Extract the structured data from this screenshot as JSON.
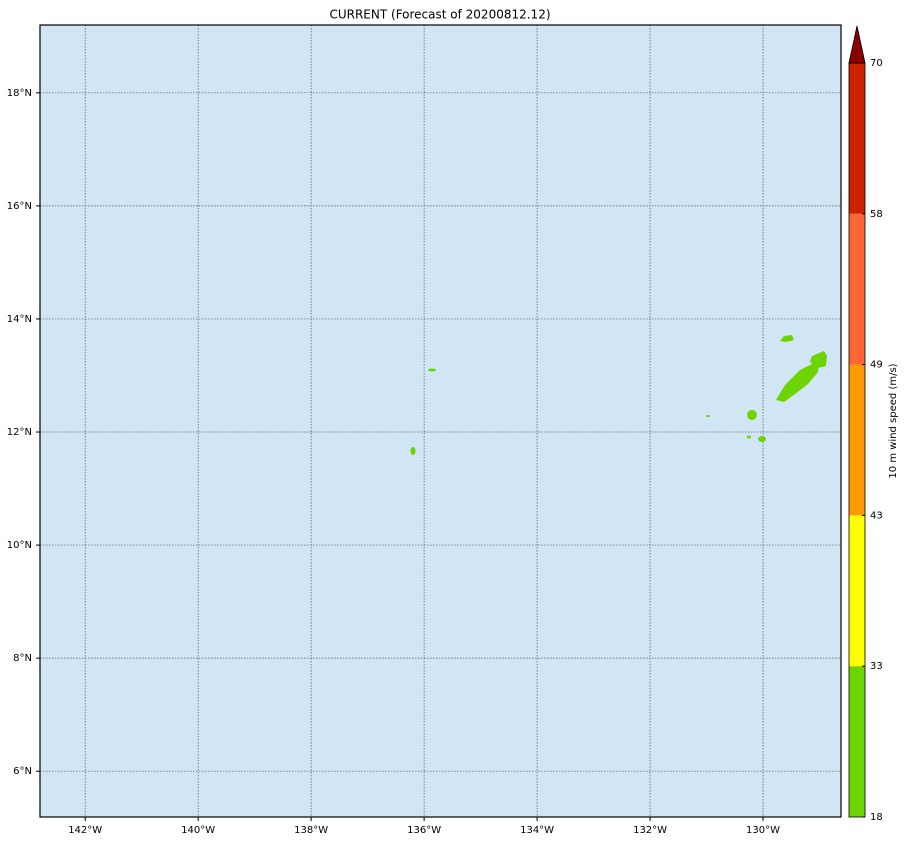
{
  "map": {
    "title": "CURRENT (Forecast of 20200812.12)",
    "lonlim": [
      -142.8,
      -128.62
    ],
    "latlim": [
      5.19,
      19.2
    ],
    "lon_ticks": [
      {
        "value": -142,
        "label": "142°W"
      },
      {
        "value": -140,
        "label": "140°W"
      },
      {
        "value": -138,
        "label": "138°W"
      },
      {
        "value": -136,
        "label": "136°W"
      },
      {
        "value": -134,
        "label": "134°W"
      },
      {
        "value": -132,
        "label": "132°W"
      },
      {
        "value": -130,
        "label": "130°W"
      }
    ],
    "lat_ticks": [
      {
        "value": 6,
        "label": "6°N"
      },
      {
        "value": 8,
        "label": "8°N"
      },
      {
        "value": 10,
        "label": "10°N"
      },
      {
        "value": 12,
        "label": "12°N"
      },
      {
        "value": 14,
        "label": "14°N"
      },
      {
        "value": 16,
        "label": "16°N"
      },
      {
        "value": 18,
        "label": "18°N"
      }
    ],
    "ocean_color": "#d0e6f5",
    "grid": true
  },
  "colorbar": {
    "label": "10 m wind speed (m/s)",
    "levels": [
      18,
      33,
      43,
      49,
      58,
      70
    ],
    "colors": [
      "#6ed400",
      "#ffff00",
      "#ff9900",
      "#ff6633",
      "#cc2200"
    ],
    "extend_color": "#8b0000"
  }
}
